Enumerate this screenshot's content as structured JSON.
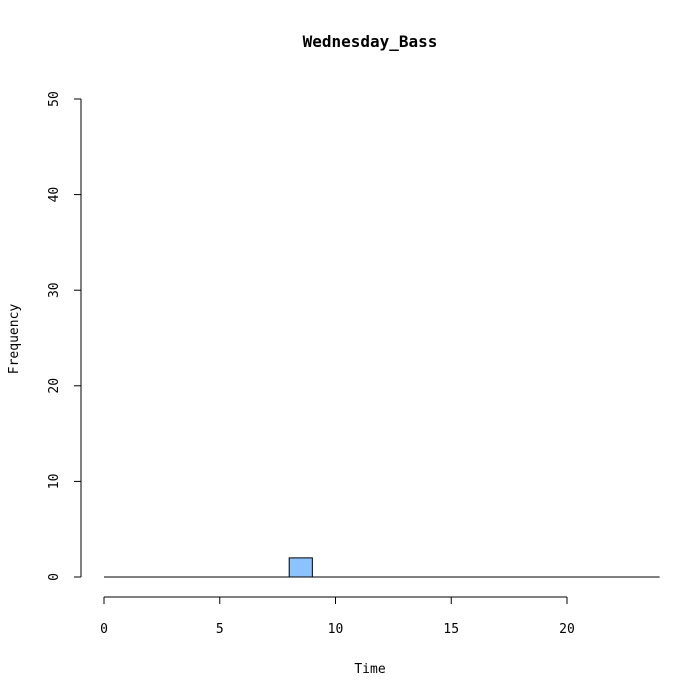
{
  "chart_data": {
    "type": "bar",
    "title": "Wednesday_Bass",
    "xlabel": "Time",
    "ylabel": "Frequency",
    "xlim": [
      0,
      24
    ],
    "ylim": [
      0,
      50
    ],
    "xticks": [
      0,
      5,
      10,
      15,
      20
    ],
    "yticks": [
      0,
      10,
      20,
      30,
      40,
      50
    ],
    "bin_width": 1,
    "bins": [
      {
        "x0": 0,
        "x1": 1,
        "count": 0
      },
      {
        "x0": 1,
        "x1": 2,
        "count": 0
      },
      {
        "x0": 2,
        "x1": 3,
        "count": 0
      },
      {
        "x0": 3,
        "x1": 4,
        "count": 0
      },
      {
        "x0": 4,
        "x1": 5,
        "count": 0
      },
      {
        "x0": 5,
        "x1": 6,
        "count": 0
      },
      {
        "x0": 6,
        "x1": 7,
        "count": 0
      },
      {
        "x0": 7,
        "x1": 8,
        "count": 0
      },
      {
        "x0": 8,
        "x1": 9,
        "count": 2
      },
      {
        "x0": 9,
        "x1": 10,
        "count": 0
      },
      {
        "x0": 10,
        "x1": 11,
        "count": 0
      },
      {
        "x0": 11,
        "x1": 12,
        "count": 0
      },
      {
        "x0": 12,
        "x1": 13,
        "count": 0
      },
      {
        "x0": 13,
        "x1": 14,
        "count": 0
      },
      {
        "x0": 14,
        "x1": 15,
        "count": 0
      },
      {
        "x0": 15,
        "x1": 16,
        "count": 0
      },
      {
        "x0": 16,
        "x1": 17,
        "count": 0
      },
      {
        "x0": 17,
        "x1": 18,
        "count": 0
      },
      {
        "x0": 18,
        "x1": 19,
        "count": 0
      },
      {
        "x0": 19,
        "x1": 20,
        "count": 0
      },
      {
        "x0": 20,
        "x1": 21,
        "count": 0
      },
      {
        "x0": 21,
        "x1": 22,
        "count": 0
      },
      {
        "x0": 22,
        "x1": 23,
        "count": 0
      },
      {
        "x0": 23,
        "x1": 24,
        "count": 0
      }
    ],
    "bar_color": "#8ac3fd",
    "edge_color": "#000000",
    "grid": false
  }
}
